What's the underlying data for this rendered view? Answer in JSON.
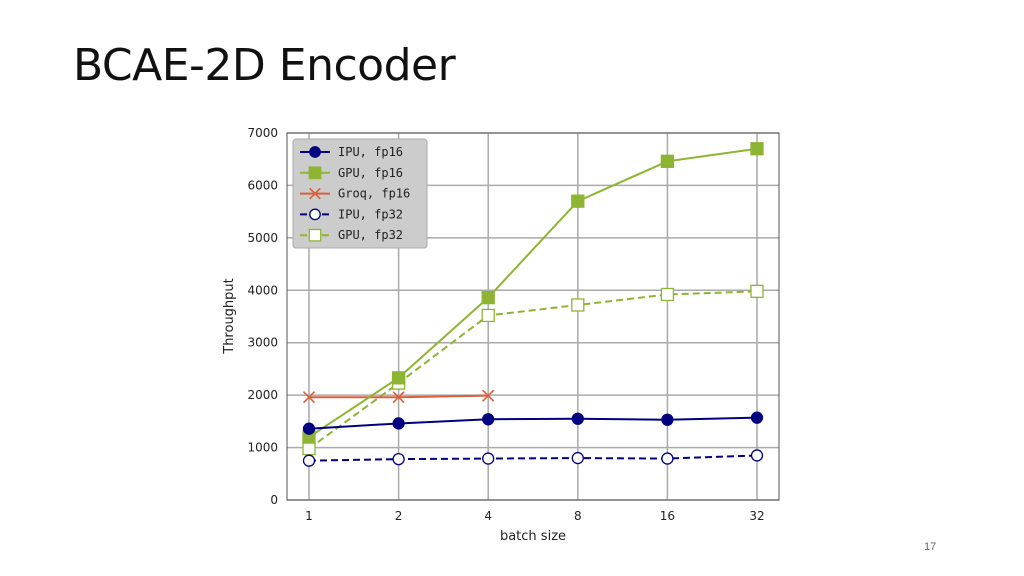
{
  "slide": {
    "title": "BCAE-2D Encoder",
    "page_number": "17"
  },
  "chart_data": {
    "type": "line",
    "title": "",
    "xlabel": "batch size",
    "ylabel": "Throughput",
    "categories": [
      "1",
      "2",
      "4",
      "8",
      "16",
      "32"
    ],
    "ylim": [
      0,
      7000
    ],
    "yticks": [
      0,
      1000,
      2000,
      3000,
      4000,
      5000,
      6000,
      7000
    ],
    "grid": true,
    "legend_position": "top-left",
    "series": [
      {
        "name": "IPU, fp16",
        "color": "#000080",
        "marker": "circle",
        "filled": true,
        "dashed": false,
        "values": [
          1360,
          1460,
          1540,
          1550,
          1530,
          1570
        ]
      },
      {
        "name": "GPU, fp16",
        "color": "#8db432",
        "marker": "square",
        "filled": true,
        "dashed": false,
        "values": [
          1200,
          2330,
          3860,
          5700,
          6460,
          6700
        ]
      },
      {
        "name": "Groq, fp16",
        "color": "#d9603b",
        "marker": "x",
        "filled": false,
        "dashed": false,
        "values": [
          1960,
          1960,
          1990,
          null,
          null,
          null
        ]
      },
      {
        "name": "IPU, fp32",
        "color": "#000080",
        "marker": "circle",
        "filled": false,
        "dashed": true,
        "values": [
          750,
          780,
          790,
          800,
          790,
          850
        ]
      },
      {
        "name": "GPU, fp32",
        "color": "#8db432",
        "marker": "square",
        "filled": false,
        "dashed": true,
        "values": [
          980,
          2230,
          3520,
          3720,
          3920,
          3980
        ]
      }
    ]
  }
}
